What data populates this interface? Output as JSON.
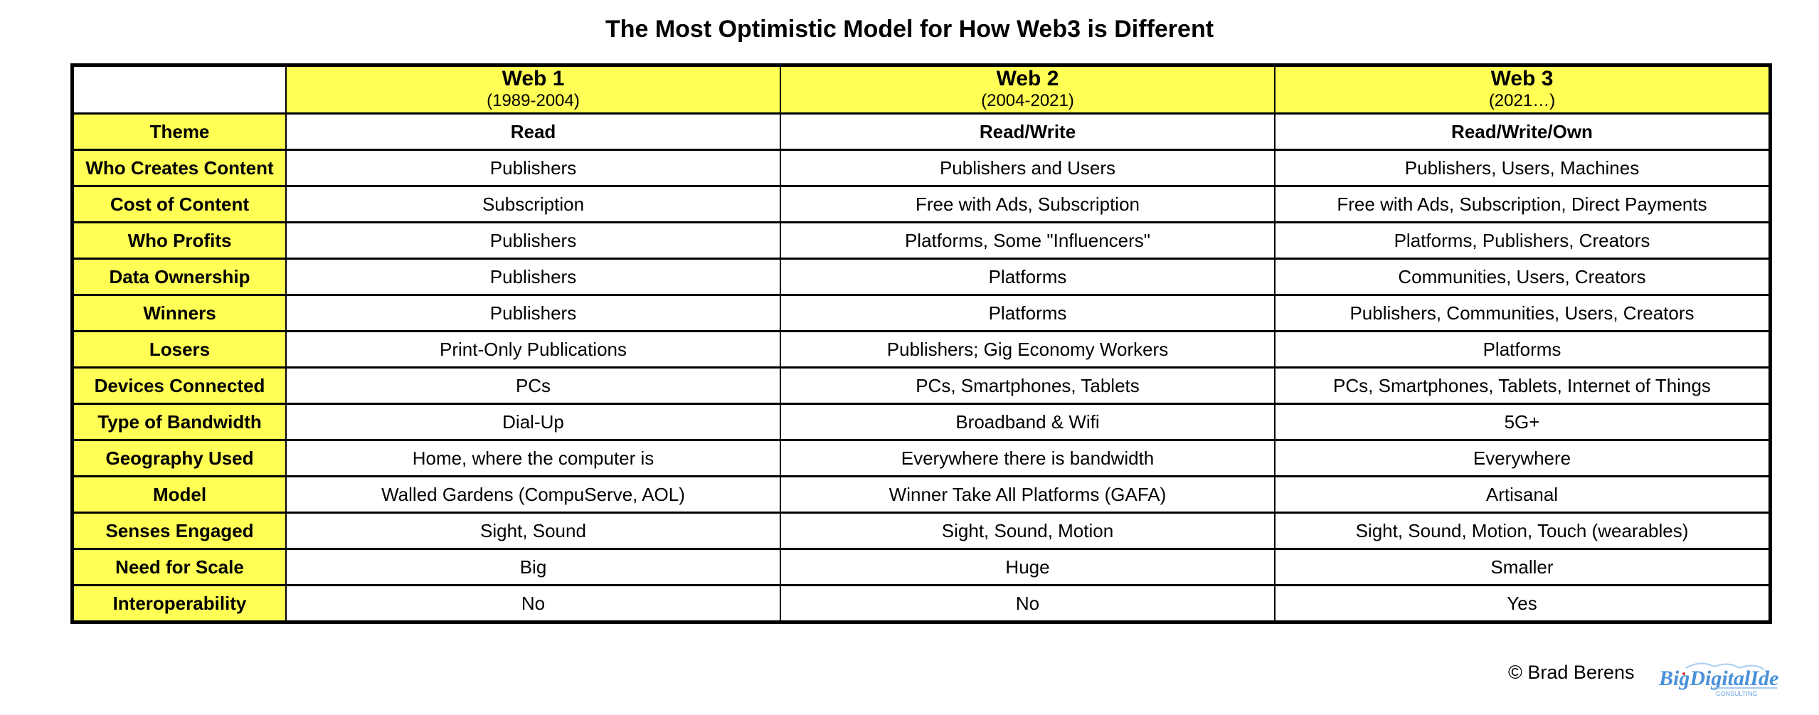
{
  "title": "The Most Optimistic Model for How Web3 is Different",
  "columns": [
    {
      "name": "Web 1",
      "years": "(1989-2004)"
    },
    {
      "name": "Web 2",
      "years": "(2004-2021)"
    },
    {
      "name": "Web 3",
      "years": "(2021…)"
    }
  ],
  "rows": [
    {
      "label": "Theme",
      "values": [
        "Read",
        "Read/Write",
        "Read/Write/Own"
      ]
    },
    {
      "label": "Who Creates Content",
      "values": [
        "Publishers",
        "Publishers and Users",
        "Publishers, Users, Machines"
      ]
    },
    {
      "label": "Cost of Content",
      "values": [
        "Subscription",
        "Free with Ads, Subscription",
        "Free with Ads, Subscription, Direct Payments"
      ]
    },
    {
      "label": "Who Profits",
      "values": [
        "Publishers",
        "Platforms, Some \"Influencers\"",
        "Platforms, Publishers, Creators"
      ]
    },
    {
      "label": "Data Ownership",
      "values": [
        "Publishers",
        "Platforms",
        "Communities, Users, Creators"
      ]
    },
    {
      "label": "Winners",
      "values": [
        "Publishers",
        "Platforms",
        "Publishers, Communities, Users, Creators"
      ]
    },
    {
      "label": "Losers",
      "values": [
        "Print-Only Publications",
        "Publishers; Gig Economy Workers",
        "Platforms"
      ]
    },
    {
      "label": "Devices Connected",
      "values": [
        "PCs",
        "PCs, Smartphones, Tablets",
        "PCs, Smartphones, Tablets, Internet of Things"
      ]
    },
    {
      "label": "Type of Bandwidth",
      "values": [
        "Dial-Up",
        "Broadband & Wifi",
        "5G+"
      ]
    },
    {
      "label": "Geography Used",
      "values": [
        "Home, where the computer is",
        "Everywhere there is bandwidth",
        "Everywhere"
      ]
    },
    {
      "label": "Model",
      "values": [
        "Walled Gardens (CompuServe, AOL)",
        "Winner Take All Platforms (GAFA)",
        "Artisanal"
      ]
    },
    {
      "label": "Senses Engaged",
      "values": [
        "Sight, Sound",
        "Sight, Sound, Motion",
        "Sight, Sound, Motion, Touch (wearables)"
      ]
    },
    {
      "label": "Need for Scale",
      "values": [
        "Big",
        "Huge",
        "Smaller"
      ]
    },
    {
      "label": "Interoperability",
      "values": [
        "No",
        "No",
        "Yes"
      ]
    }
  ],
  "footer": {
    "copyright": "© Brad Berens",
    "logo_text": "Big Digital Idea",
    "logo_subtext": "CONSULTING"
  },
  "colors": {
    "header_fill": "#ffff55",
    "logo_blue": "#4a90d9"
  }
}
